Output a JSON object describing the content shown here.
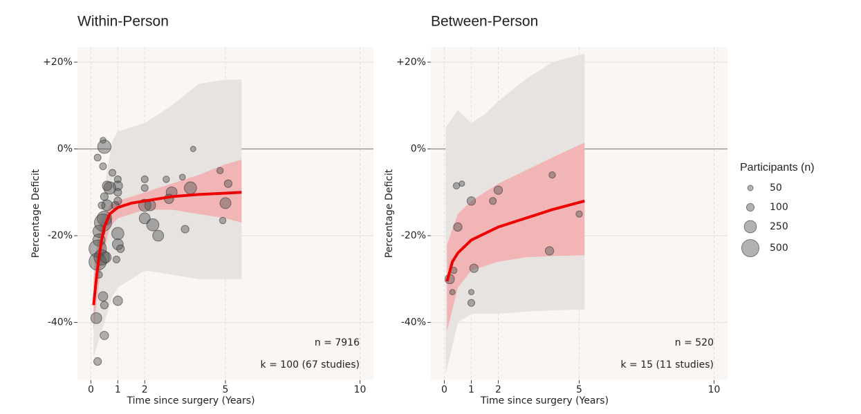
{
  "chart_data": [
    {
      "type": "scatter",
      "title": "Within-Person",
      "x_label": "Time since surgery (Years)",
      "y_label": "Percentage Deficit",
      "xlim": [
        -0.5,
        10.5
      ],
      "ylim": [
        -53.3,
        23.5
      ],
      "xticks": [
        0,
        1,
        2,
        5,
        10
      ],
      "yticks": [
        {
          "value": 20,
          "label": "+20%"
        },
        {
          "value": 0,
          "label": "0%"
        },
        {
          "value": -20,
          "label": "-20%"
        },
        {
          "value": -40,
          "label": "-40%"
        }
      ],
      "grid": true,
      "annotations": [
        "n = 7916",
        "k = 100 (67 studies)"
      ],
      "points": {
        "color": "#555555",
        "x": [
          0.45,
          0.5,
          0.25,
          0.45,
          0.8,
          3.8,
          4.8,
          5.1,
          5,
          3.4,
          3.7,
          2.8,
          2,
          2,
          2.2,
          2,
          2,
          2.3,
          2.5,
          3,
          2.9,
          4.9,
          3.5,
          1,
          1,
          1,
          1,
          0.9,
          0.7,
          0.6,
          0.6,
          0.5,
          0.45,
          0.3,
          0.3,
          0.25,
          0.25,
          0.4,
          0.55,
          1,
          1,
          1.1,
          0.95,
          0.3,
          0.45,
          0.5,
          0.2,
          0.5,
          0.25,
          1,
          0.4,
          0.5
        ],
        "y": [
          2,
          0.5,
          -2,
          -4,
          -5.5,
          0,
          -5,
          -8,
          -12.5,
          -6.5,
          -9,
          -7,
          -7,
          -9,
          -13,
          -13,
          -16,
          -17.5,
          -20,
          -10,
          -11.5,
          -16.5,
          -18.5,
          -7,
          -8.5,
          -10,
          -12,
          -13,
          -9,
          -8.5,
          -13,
          -16,
          -17,
          -19,
          -21,
          -23,
          -26,
          -25,
          -25,
          -19.5,
          -22,
          -23,
          -25.5,
          -29,
          -34,
          -36,
          -39,
          -43,
          -49,
          -35,
          -13,
          -11
        ],
        "n": [
          60,
          300,
          80,
          80,
          80,
          50,
          70,
          100,
          200,
          60,
          250,
          70,
          80,
          80,
          200,
          250,
          200,
          250,
          200,
          200,
          150,
          70,
          100,
          80,
          150,
          100,
          100,
          100,
          250,
          150,
          200,
          350,
          500,
          250,
          250,
          500,
          500,
          400,
          200,
          250,
          200,
          100,
          80,
          80,
          150,
          100,
          200,
          120,
          100,
          150,
          80,
          100
        ]
      },
      "fit": {
        "color": "#ee0000",
        "x": [
          0.1,
          0.2,
          0.3,
          0.4,
          0.5,
          0.7,
          1,
          1.5,
          2,
          3,
          4,
          5,
          5.6
        ],
        "y": [
          -36,
          -30,
          -25,
          -21,
          -18,
          -15,
          -13.5,
          -12.5,
          -12,
          -11,
          -10.5,
          -10.2,
          -10
        ]
      },
      "ci": {
        "color": "#f2b5b5",
        "x": [
          0.1,
          0.2,
          0.4,
          0.7,
          1,
          2,
          3,
          4,
          5,
          5.6
        ],
        "upper": [
          -30,
          -24,
          -17,
          -13,
          -12,
          -10,
          -8,
          -6,
          -3.5,
          -2.5
        ],
        "lower": [
          -42,
          -36,
          -26,
          -18,
          -16,
          -14,
          -14,
          -15,
          -16,
          -17
        ]
      },
      "pi": {
        "color": "#e6e3e1",
        "x": [
          0.1,
          0.3,
          0.6,
          0.8,
          1,
          2,
          3,
          4,
          5,
          5.6
        ],
        "upper": [
          -28,
          -18,
          -5,
          2,
          4,
          6,
          10,
          15,
          16,
          16
        ],
        "lower": [
          -48,
          -44,
          -38,
          -34,
          -32,
          -28,
          -29,
          -30,
          -30,
          -30
        ]
      }
    },
    {
      "type": "scatter",
      "title": "Between-Person",
      "x_label": "Time since surgery (Years)",
      "y_label": "Percentage Deficit",
      "xlim": [
        -0.5,
        10.5
      ],
      "ylim": [
        -53.3,
        23.5
      ],
      "xticks": [
        0,
        1,
        2,
        5,
        10
      ],
      "yticks": [
        {
          "value": 20,
          "label": "+20%"
        },
        {
          "value": 0,
          "label": "0%"
        },
        {
          "value": -20,
          "label": "-20%"
        },
        {
          "value": -40,
          "label": "-40%"
        }
      ],
      "grid": true,
      "annotations": [
        "n = 520",
        "k = 15 (11 studies)"
      ],
      "points": {
        "color": "#555555",
        "x": [
          0.2,
          0.35,
          0.3,
          0.45,
          0.65,
          0.5,
          1,
          1.1,
          1,
          1,
          1.8,
          2,
          4,
          5,
          3.9
        ],
        "y": [
          -30,
          -28,
          -33,
          -8.5,
          -8,
          -18,
          -12,
          -27.5,
          -33,
          -35.5,
          -12,
          -9.5,
          -6,
          -15,
          -23.5
        ],
        "n": [
          150,
          70,
          50,
          70,
          50,
          120,
          120,
          120,
          50,
          80,
          80,
          120,
          70,
          70,
          120
        ]
      },
      "fit": {
        "color": "#ee0000",
        "x": [
          0.1,
          0.3,
          0.5,
          1,
          2,
          3,
          4,
          5.2
        ],
        "y": [
          -30.5,
          -26,
          -24,
          -21,
          -18,
          -16,
          -14,
          -12
        ]
      },
      "ci": {
        "color": "#f2b5b5",
        "x": [
          0.1,
          0.5,
          1,
          2,
          3,
          4,
          5.2
        ],
        "upper": [
          -22,
          -15,
          -12,
          -8,
          -5,
          -2,
          1.5
        ],
        "lower": [
          -42,
          -32,
          -28,
          -26,
          -25,
          -24.7,
          -24.5
        ]
      },
      "pi": {
        "color": "#e6e3e1",
        "x": [
          0.05,
          0.5,
          1,
          1.5,
          2,
          3,
          4,
          5.2
        ],
        "upper": [
          5,
          9,
          6,
          8,
          11,
          16,
          20,
          22
        ],
        "lower": [
          -52,
          -40,
          -38,
          -38,
          -38,
          -37.5,
          -37.2,
          -37
        ]
      },
      "size_legend": {
        "title": "Participants (n)",
        "values": [
          50,
          100,
          250,
          500
        ]
      }
    }
  ]
}
